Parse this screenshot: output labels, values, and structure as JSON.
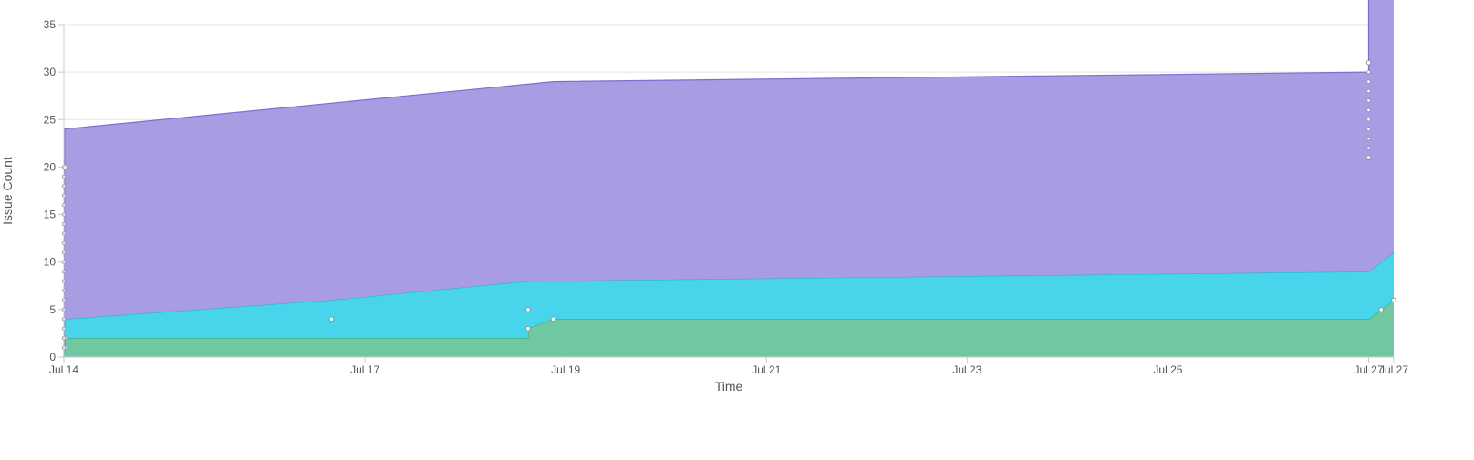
{
  "chart_data": {
    "type": "area",
    "stacked": true,
    "xlabel": "Time",
    "ylabel": "Issue Count",
    "ylim": [
      0,
      35
    ],
    "yticks": [
      0,
      5,
      10,
      15,
      20,
      25,
      30,
      35
    ],
    "xlim": [
      "2023-07-14T00:00",
      "2023-07-27T06:00"
    ],
    "xticks": [
      {
        "label": "Jul 14",
        "date": "2023-07-14T00:00"
      },
      {
        "label": "Jul 17",
        "date": "2023-07-17T00:00"
      },
      {
        "label": "Jul 19",
        "date": "2023-07-19T00:00"
      },
      {
        "label": "Jul 21",
        "date": "2023-07-21T00:00"
      },
      {
        "label": "Jul 23",
        "date": "2023-07-23T00:00"
      },
      {
        "label": "Jul 25",
        "date": "2023-07-25T00:00"
      },
      {
        "label": "Jul 27",
        "date": "2023-07-27T00:00"
      },
      {
        "label": "Jul 27",
        "date": "2023-07-27T06:00"
      }
    ],
    "grid": true,
    "legend": "none",
    "series": [
      {
        "color": "#6fc8a0",
        "stroke": "#3daa7a",
        "points": [
          [
            "2023-07-14T00:00",
            0
          ],
          [
            "2023-07-14T00:12",
            1
          ],
          [
            "2023-07-14T00:24",
            2
          ],
          [
            "2023-07-18T15:00",
            2
          ],
          [
            "2023-07-18T15:00",
            3
          ],
          [
            "2023-07-18T21:00",
            4
          ],
          [
            "2023-07-27T00:00",
            4
          ],
          [
            "2023-07-27T03:00",
            5
          ],
          [
            "2023-07-27T06:00",
            6
          ]
        ]
      },
      {
        "color": "#48d4ea",
        "stroke": "#22b8d0",
        "points": [
          [
            "2023-07-14T00:00",
            0
          ],
          [
            "2023-07-14T00:12",
            3
          ],
          [
            "2023-07-16T16:00",
            4
          ],
          [
            "2023-07-18T15:00",
            5
          ],
          [
            "2023-07-27T00:00",
            5
          ],
          [
            "2023-07-27T06:00",
            5
          ]
        ]
      },
      {
        "color": "#a89ce2",
        "stroke": "#7e6fd0",
        "points": [
          [
            "2023-07-14T00:00",
            0
          ],
          [
            "2023-07-14T00:12",
            20
          ],
          [
            "2023-07-18T21:00",
            20
          ],
          [
            "2023-07-27T00:00",
            21
          ],
          [
            "2023-07-27T00:00",
            31
          ],
          [
            "2023-07-27T06:00",
            31
          ]
        ]
      }
    ],
    "marker_points": [
      [
        "2023-07-14T00:12",
        20
      ],
      [
        "2023-07-14T00:12",
        2
      ],
      [
        "2023-07-14T00:12",
        1
      ],
      [
        "2023-07-16T16:00",
        4
      ],
      [
        "2023-07-18T15:00",
        5
      ],
      [
        "2023-07-18T15:00",
        3
      ],
      [
        "2023-07-18T21:00",
        4
      ],
      [
        "2023-07-27T00:00",
        21
      ],
      [
        "2023-07-27T00:00",
        31
      ],
      [
        "2023-07-27T06:00",
        6
      ],
      [
        "2023-07-27T03:00",
        5
      ]
    ]
  }
}
